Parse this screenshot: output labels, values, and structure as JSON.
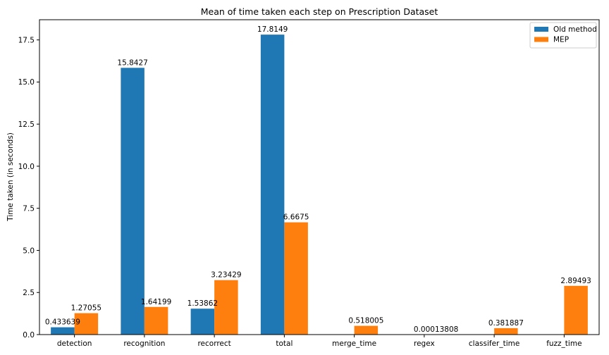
{
  "chart_data": {
    "type": "bar",
    "title": "Mean of time taken each step on Prescription Dataset",
    "xlabel": "",
    "ylabel": "Time taken (in seconds)",
    "ylim": [
      0,
      18.7
    ],
    "yticks": [
      0.0,
      2.5,
      5.0,
      7.5,
      10.0,
      12.5,
      15.0,
      17.5
    ],
    "ytick_labels": [
      "0.0",
      "2.5",
      "5.0",
      "7.5",
      "10.0",
      "12.5",
      "15.0",
      "17.5"
    ],
    "grid": false,
    "legend_position": "top-right",
    "categories": [
      "detection",
      "recognition",
      "recorrect",
      "total",
      "merge_time",
      "regex",
      "classifer_time",
      "fuzz_time"
    ],
    "series": [
      {
        "name": "Old method",
        "color": "#1f77b4",
        "values": [
          0.433639,
          15.8427,
          1.53862,
          17.8149,
          null,
          null,
          null,
          null
        ],
        "labels": [
          "0.433639",
          "15.8427",
          "1.53862",
          "17.8149",
          "",
          "",
          "",
          ""
        ]
      },
      {
        "name": "MEP",
        "color": "#ff7f0e",
        "values": [
          1.27055,
          1.64199,
          3.23429,
          6.6675,
          0.518005,
          0.00013808,
          0.381887,
          2.89493
        ],
        "labels": [
          "1.27055",
          "1.64199",
          "3.23429",
          "6.6675",
          "0.518005",
          "0.00013808",
          "0.381887",
          "2.89493"
        ]
      }
    ]
  }
}
